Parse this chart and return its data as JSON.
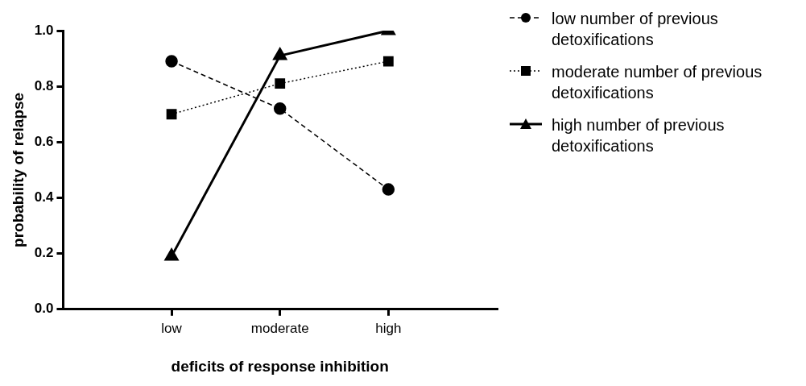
{
  "chart_data": {
    "type": "line",
    "xlabel": "deficits of response inhibition",
    "ylabel": "probability of relapse",
    "categories": [
      "low",
      "moderate",
      "high"
    ],
    "ylim": [
      0,
      1
    ],
    "yticks": [
      {
        "value": 0,
        "label": "0.0"
      },
      {
        "value": 0.2,
        "label": "0.2"
      },
      {
        "value": 0.4,
        "label": "0.4"
      },
      {
        "value": 0.6,
        "label": "0.6"
      },
      {
        "value": 0.8,
        "label": "0.8"
      },
      {
        "value": 1,
        "label": "1.0"
      }
    ],
    "grid": false,
    "legend": "right",
    "series": [
      {
        "name": "low number of previous detoxifications",
        "color": "#000000",
        "marker": "circle",
        "line_style": "dashed",
        "values": [
          0.89,
          0.72,
          0.43
        ]
      },
      {
        "name": "moderate number of previous detoxifications",
        "color": "#000000",
        "marker": "square",
        "line_style": "dotted",
        "values": [
          0.7,
          0.81,
          0.89
        ]
      },
      {
        "name": "high number of previous detoxifications",
        "color": "#000000",
        "marker": "triangle",
        "line_style": "solid",
        "values": [
          0.19,
          0.91,
          1.0
        ]
      }
    ]
  }
}
